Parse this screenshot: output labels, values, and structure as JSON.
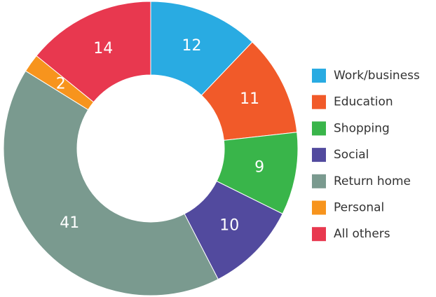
{
  "chart_data": {
    "type": "donut",
    "categories": [
      "Work/business",
      "Education",
      "Shopping",
      "Social",
      "Return home",
      "Personal",
      "All others"
    ],
    "values": [
      12,
      11,
      9,
      10,
      41,
      2,
      14
    ],
    "colors": [
      "#29abe2",
      "#f15a29",
      "#39b54a",
      "#524a9e",
      "#7a9a8f",
      "#f7941d",
      "#e8384f"
    ],
    "legend": "right"
  }
}
